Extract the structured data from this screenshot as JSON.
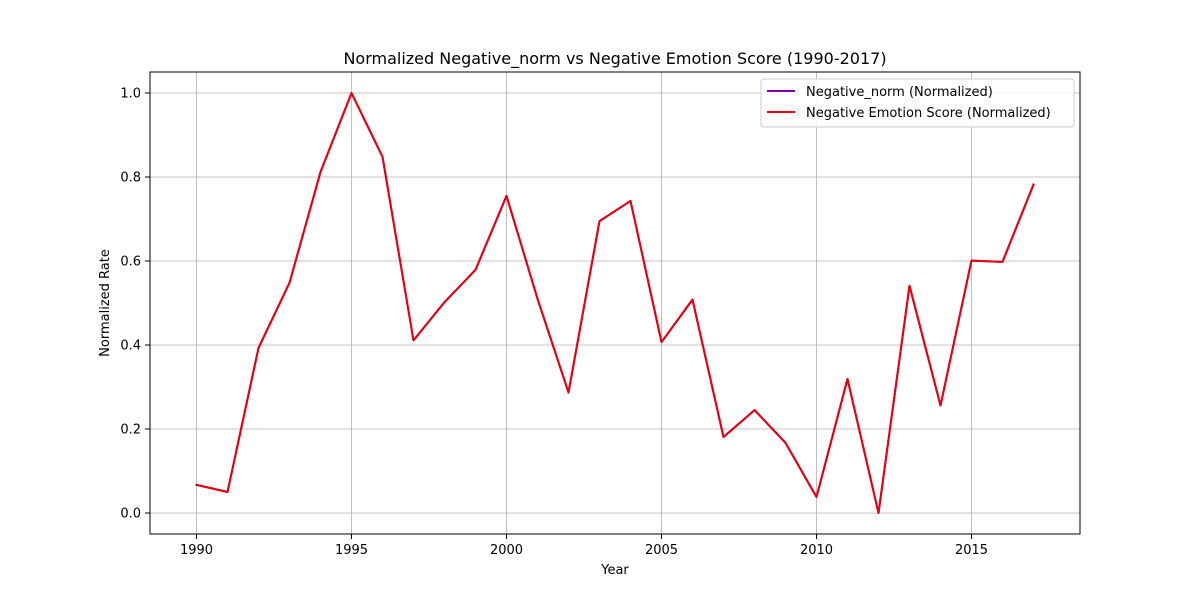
{
  "chart_data": {
    "type": "line",
    "title": "Normalized Negative_norm vs Negative Emotion Score (1990-2017)",
    "xlabel": "Year",
    "ylabel": "Normalized Rate",
    "xlim": [
      1988.5,
      2018.5
    ],
    "ylim": [
      -0.05,
      1.05
    ],
    "x_ticks": [
      1990,
      1995,
      2000,
      2005,
      2010,
      2015
    ],
    "y_ticks": [
      0.0,
      0.2,
      0.4,
      0.6,
      0.8,
      1.0
    ],
    "y_tick_labels": [
      "0.0",
      "0.2",
      "0.4",
      "0.6",
      "0.8",
      "1.0"
    ],
    "grid": true,
    "legend_position": "top-right",
    "x": [
      1990,
      1991,
      1992,
      1993,
      1994,
      1995,
      1996,
      1997,
      1998,
      1999,
      2000,
      2001,
      2002,
      2003,
      2004,
      2005,
      2006,
      2007,
      2008,
      2009,
      2010,
      2011,
      2012,
      2013,
      2014,
      2015,
      2016,
      2017
    ],
    "series": [
      {
        "name": "Negative_norm (Normalized)",
        "color": "#8000a0",
        "values": [
          0.067,
          0.05,
          0.393,
          0.548,
          0.812,
          1.0,
          0.848,
          0.411,
          0.502,
          0.579,
          0.755,
          0.51,
          0.287,
          0.695,
          0.743,
          0.407,
          0.508,
          0.181,
          0.245,
          0.167,
          0.038,
          0.319,
          0.0,
          0.541,
          0.256,
          0.601,
          0.598,
          0.782
        ]
      },
      {
        "name": "Negative Emotion Score (Normalized)",
        "color": "#e8000b",
        "values": [
          0.067,
          0.05,
          0.393,
          0.548,
          0.812,
          1.0,
          0.848,
          0.411,
          0.502,
          0.579,
          0.755,
          0.51,
          0.287,
          0.695,
          0.743,
          0.407,
          0.508,
          0.181,
          0.245,
          0.167,
          0.038,
          0.319,
          0.0,
          0.541,
          0.256,
          0.601,
          0.598,
          0.782
        ]
      }
    ]
  }
}
